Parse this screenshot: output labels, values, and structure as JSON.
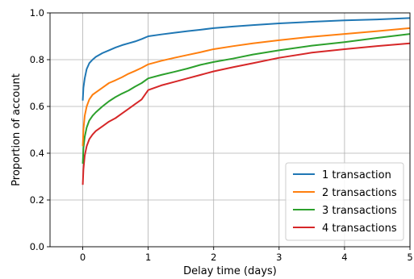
{
  "chart_data": {
    "type": "line",
    "title": "",
    "xlabel": "Delay time (days)",
    "ylabel": "Proportion of account",
    "xlim": [
      -0.5,
      5
    ],
    "ylim": [
      0.0,
      1.0
    ],
    "xticks": [
      "0",
      "1",
      "2",
      "3",
      "4",
      "5"
    ],
    "yticks": [
      "0.0",
      "0.2",
      "0.4",
      "0.6",
      "0.8",
      "1.0"
    ],
    "grid": true,
    "legend_position": "lower-right",
    "series": [
      {
        "name": "1 transaction",
        "color": "#1f77b4",
        "x": [
          0,
          0.01,
          0.03,
          0.06,
          0.1,
          0.15,
          0.2,
          0.3,
          0.4,
          0.5,
          0.6,
          0.7,
          0.8,
          0.9,
          1.0,
          1.2,
          1.4,
          1.6,
          1.8,
          2.0,
          2.3,
          2.6,
          3.0,
          3.5,
          4.0,
          4.5,
          5.0
        ],
        "y": [
          0.625,
          0.68,
          0.72,
          0.76,
          0.785,
          0.8,
          0.812,
          0.828,
          0.84,
          0.852,
          0.862,
          0.87,
          0.878,
          0.888,
          0.9,
          0.908,
          0.915,
          0.922,
          0.928,
          0.935,
          0.942,
          0.948,
          0.955,
          0.962,
          0.968,
          0.972,
          0.978
        ]
      },
      {
        "name": "2 transactions",
        "color": "#ff7f0e",
        "x": [
          0,
          0.01,
          0.03,
          0.06,
          0.1,
          0.15,
          0.2,
          0.3,
          0.4,
          0.5,
          0.6,
          0.7,
          0.8,
          0.9,
          1.0,
          1.2,
          1.4,
          1.6,
          1.8,
          2.0,
          2.3,
          2.6,
          3.0,
          3.5,
          4.0,
          4.5,
          5.0
        ],
        "y": [
          0.43,
          0.5,
          0.56,
          0.6,
          0.63,
          0.65,
          0.66,
          0.68,
          0.7,
          0.712,
          0.725,
          0.74,
          0.752,
          0.765,
          0.78,
          0.795,
          0.808,
          0.82,
          0.832,
          0.845,
          0.858,
          0.87,
          0.883,
          0.898,
          0.91,
          0.922,
          0.935
        ]
      },
      {
        "name": "3 transactions",
        "color": "#2ca02c",
        "x": [
          0,
          0.01,
          0.03,
          0.06,
          0.1,
          0.15,
          0.2,
          0.3,
          0.4,
          0.5,
          0.6,
          0.7,
          0.8,
          0.9,
          1.0,
          1.2,
          1.4,
          1.6,
          1.8,
          2.0,
          2.3,
          2.6,
          3.0,
          3.5,
          4.0,
          4.5,
          5.0
        ],
        "y": [
          0.355,
          0.42,
          0.47,
          0.51,
          0.54,
          0.56,
          0.575,
          0.6,
          0.622,
          0.64,
          0.655,
          0.668,
          0.685,
          0.7,
          0.72,
          0.735,
          0.748,
          0.762,
          0.778,
          0.79,
          0.805,
          0.822,
          0.84,
          0.86,
          0.875,
          0.893,
          0.91
        ]
      },
      {
        "name": "4 transactions",
        "color": "#d62728",
        "x": [
          0,
          0.01,
          0.03,
          0.06,
          0.1,
          0.15,
          0.2,
          0.3,
          0.4,
          0.5,
          0.6,
          0.7,
          0.8,
          0.9,
          1.0,
          1.2,
          1.4,
          1.6,
          1.8,
          2.0,
          2.3,
          2.6,
          3.0,
          3.5,
          4.0,
          4.5,
          5.0
        ],
        "y": [
          0.265,
          0.33,
          0.39,
          0.43,
          0.46,
          0.48,
          0.495,
          0.515,
          0.535,
          0.55,
          0.57,
          0.59,
          0.61,
          0.63,
          0.67,
          0.69,
          0.705,
          0.72,
          0.735,
          0.75,
          0.768,
          0.785,
          0.808,
          0.83,
          0.845,
          0.858,
          0.87
        ]
      }
    ]
  }
}
